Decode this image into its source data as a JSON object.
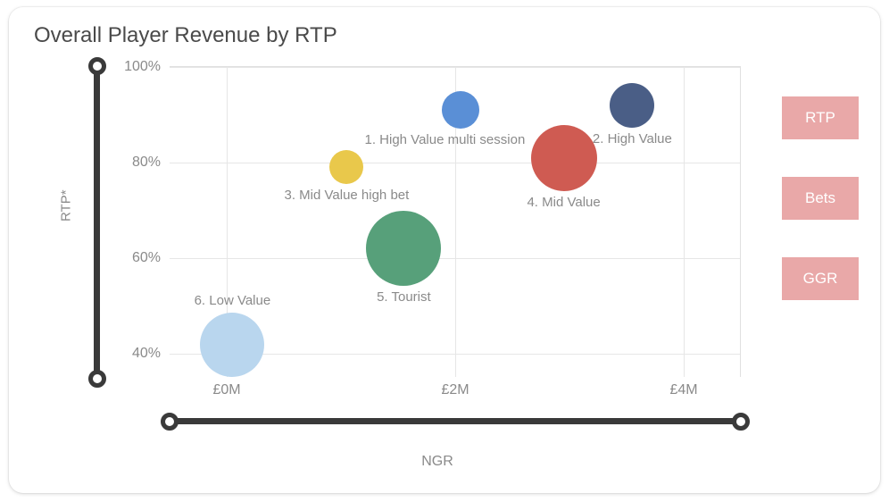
{
  "title": "Overall Player Revenue by RTP",
  "buttons": {
    "rtp": "RTP",
    "bets": "Bets",
    "ggr": "GGR"
  },
  "chart": {
    "type": "bubble",
    "background_color": "#ffffff",
    "grid_color": "#e6e6e6",
    "label_color": "#8a8a8a",
    "xlabel": "NGR",
    "ylabel": "RTP*",
    "xlim": [
      -0.5,
      4.5
    ],
    "ylim": [
      35,
      100
    ],
    "xticks": [
      {
        "value": 0,
        "label": "£0M"
      },
      {
        "value": 2,
        "label": "£2M"
      },
      {
        "value": 4,
        "label": "£4M"
      }
    ],
    "yticks": [
      {
        "value": 40,
        "label": "40%"
      },
      {
        "value": 60,
        "label": "60%"
      },
      {
        "value": 80,
        "label": "80%"
      },
      {
        "value": 100,
        "label": "100%"
      }
    ],
    "series": [
      {
        "label": "1. High Value multi session",
        "x": 2.05,
        "y": 91,
        "size": 42,
        "color": "#5a8fd6",
        "label_pos": "below",
        "label_dx": -18
      },
      {
        "label": "2. High Value",
        "x": 3.55,
        "y": 92,
        "size": 50,
        "color": "#4a5e86",
        "label_pos": "below",
        "label_dx": 0
      },
      {
        "label": "3. Mid Value high bet",
        "x": 1.05,
        "y": 79,
        "size": 38,
        "color": "#e9c84b",
        "label_pos": "below",
        "label_dx": 0
      },
      {
        "label": "4. Mid Value",
        "x": 2.95,
        "y": 81,
        "size": 74,
        "color": "#cf5b52",
        "label_pos": "below",
        "label_dx": 0
      },
      {
        "label": "5. Tourist",
        "x": 1.55,
        "y": 62,
        "size": 84,
        "color": "#57a07a",
        "label_pos": "below",
        "label_dx": 0
      },
      {
        "label": "6. Low Value",
        "x": 0.05,
        "y": 42,
        "size": 72,
        "color": "#b9d6ee",
        "label_pos": "above",
        "label_dx": 0
      }
    ]
  },
  "slider_color": "#3a3a3a",
  "button_bg": "#e9a8a8",
  "button_fg": "#ffffff"
}
